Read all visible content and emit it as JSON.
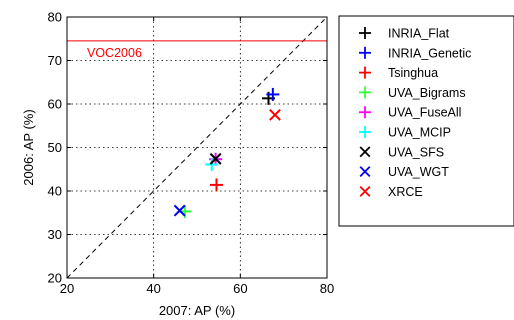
{
  "chart_data": {
    "type": "scatter",
    "xlabel": "2007: AP (%)",
    "ylabel": "2006: AP (%)",
    "xlim": [
      20,
      80
    ],
    "ylim": [
      20,
      80
    ],
    "xticks": [
      20,
      40,
      60,
      80
    ],
    "yticks": [
      20,
      30,
      40,
      50,
      60,
      70,
      80
    ],
    "grid": true,
    "legend_position": "right-outside",
    "reference_lines": [
      {
        "type": "diagonal",
        "style": "dashed",
        "color": "#000000",
        "from": [
          20,
          20
        ],
        "to": [
          80,
          80
        ]
      },
      {
        "type": "horizontal",
        "y": 74.5,
        "color": "#ff0000",
        "label": "VOC2006"
      }
    ],
    "series": [
      {
        "name": "INRIA_Flat",
        "marker": "+",
        "color": "#000000",
        "points": [
          [
            66.5,
            61.3
          ]
        ]
      },
      {
        "name": "INRIA_Genetic",
        "marker": "+",
        "color": "#0000ff",
        "points": [
          [
            67.5,
            62.2
          ]
        ]
      },
      {
        "name": "Tsinghua",
        "marker": "+",
        "color": "#ff0000",
        "points": [
          [
            54.5,
            41.4
          ]
        ]
      },
      {
        "name": "UVA_Bigrams",
        "marker": "+",
        "color": "#33ff33",
        "points": [
          [
            47.2,
            35.3
          ]
        ]
      },
      {
        "name": "UVA_FuseAll",
        "marker": "+",
        "color": "#ff00ff",
        "points": [
          [
            54.3,
            47.3
          ]
        ]
      },
      {
        "name": "UVA_MCIP",
        "marker": "+",
        "color": "#00ffff",
        "points": [
          [
            53.4,
            46.1
          ]
        ]
      },
      {
        "name": "UVA_SFS",
        "marker": "x",
        "color": "#000000",
        "points": [
          [
            54.3,
            47.4
          ]
        ]
      },
      {
        "name": "UVA_WGT",
        "marker": "x",
        "color": "#0000ff",
        "points": [
          [
            46.0,
            35.5
          ]
        ]
      },
      {
        "name": "XRCE",
        "marker": "x",
        "color": "#ff0000",
        "points": [
          [
            68.0,
            57.5
          ]
        ]
      }
    ]
  }
}
